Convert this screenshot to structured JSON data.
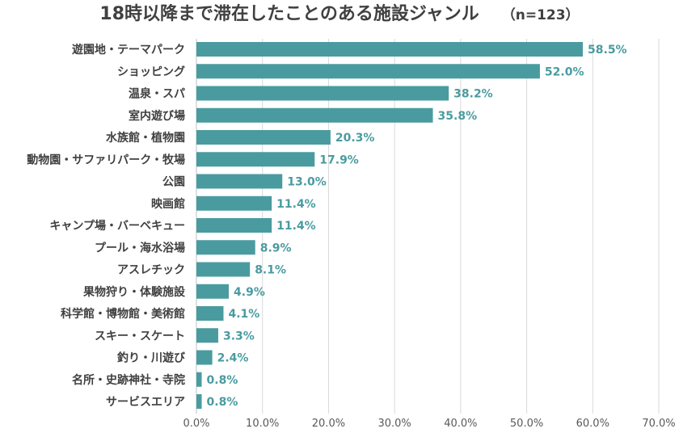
{
  "chart_data": {
    "type": "bar",
    "orientation": "horizontal",
    "title": "18時以降まで滞在したことのある施設ジャンル",
    "sample_size": "（n=123）",
    "xlabel": "",
    "ylabel": "",
    "xlim": [
      0,
      70
    ],
    "x_ticks": [
      "0.0%",
      "10.0%",
      "20.0%",
      "30.0%",
      "40.0%",
      "50.0%",
      "60.0%",
      "70.0%"
    ],
    "grid": "vertical",
    "bar_color": "#4a9ba0",
    "label_color": "#4a9ba0",
    "categories": [
      "遊園地・テーマパーク",
      "ショッピング",
      "温泉・スパ",
      "室内遊び場",
      "水族館・植物園",
      "動物園・サファリパーク・牧場",
      "公園",
      "映画館",
      "キャンプ場・バーベキュー",
      "プール・海水浴場",
      "アスレチック",
      "果物狩り・体験施設",
      "科学館・博物館・美術館",
      "スキー・スケート",
      "釣り・川遊び",
      "名所・史跡神社・寺院",
      "サービスエリア"
    ],
    "values": [
      58.5,
      52.0,
      38.2,
      35.8,
      20.3,
      17.9,
      13.0,
      11.4,
      11.4,
      8.9,
      8.1,
      4.9,
      4.1,
      3.3,
      2.4,
      0.8,
      0.8
    ],
    "value_labels": [
      "58.5%",
      "52.0%",
      "38.2%",
      "35.8%",
      "20.3%",
      "17.9%",
      "13.0%",
      "11.4%",
      "11.4%",
      "8.9%",
      "8.1%",
      "4.9%",
      "4.1%",
      "3.3%",
      "2.4%",
      "0.8%",
      "0.8%"
    ]
  }
}
